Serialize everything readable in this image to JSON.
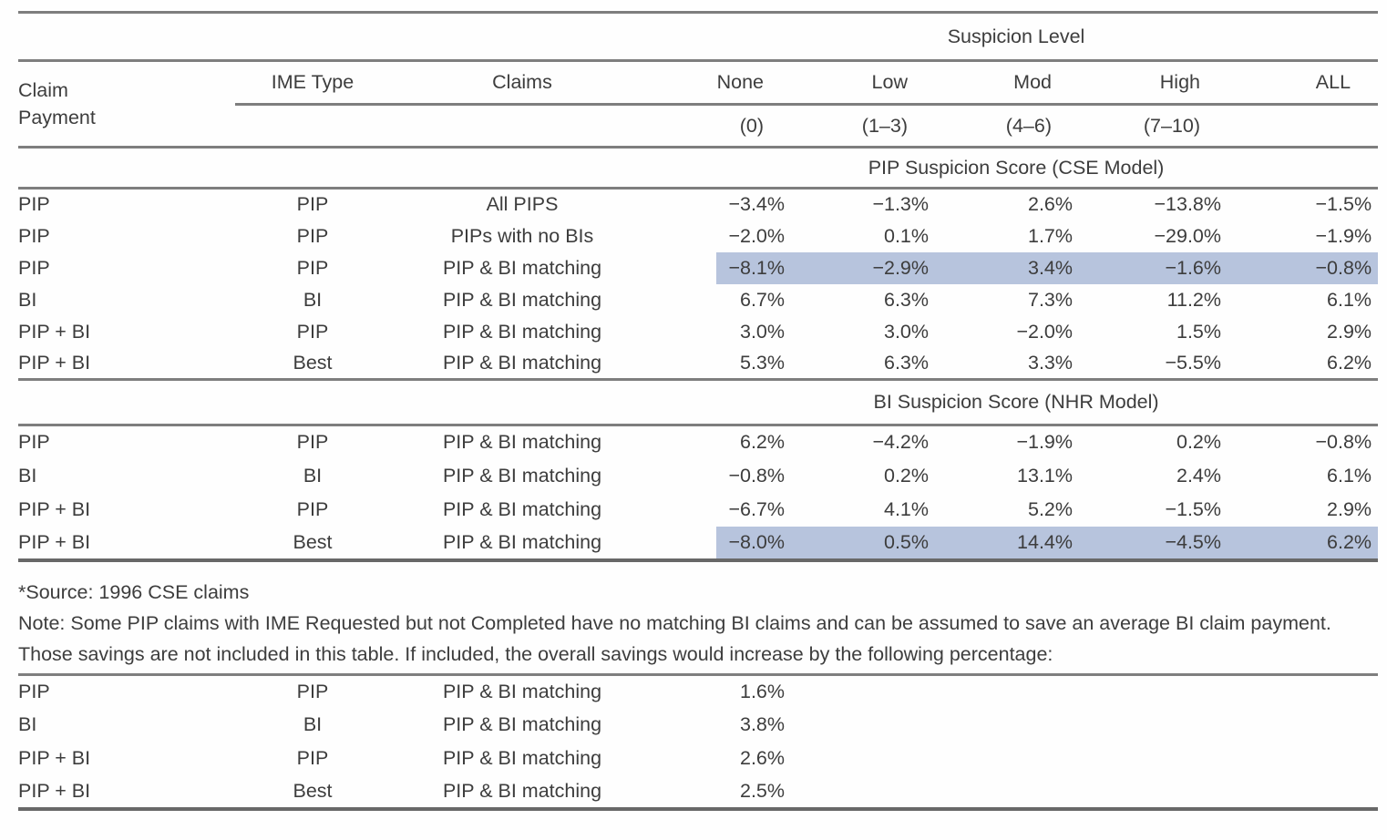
{
  "colors": {
    "highlight": "#b7c4dd",
    "rule": "#7e7e7e",
    "text": "#3d3d3d"
  },
  "table": {
    "suspicion_level": "Suspicion Level",
    "headers": {
      "claim_payment": "Claim Payment",
      "ime_type": "IME Type",
      "claims": "Claims",
      "levels": [
        "None",
        "Low",
        "Mod",
        "High",
        "ALL"
      ],
      "ranges": [
        "(0)",
        "(1–3)",
        "(4–6)",
        "(7–10)"
      ]
    },
    "sections": [
      {
        "banner": "PIP Suspicion Score (CSE Model)",
        "rows": [
          {
            "claim_payment": "PIP",
            "ime_type": "PIP",
            "claims": "All PIPS",
            "values": [
              "−3.4%",
              "−1.3%",
              "2.6%",
              "−13.8%",
              "−1.5%"
            ],
            "highlighted": false
          },
          {
            "claim_payment": "PIP",
            "ime_type": "PIP",
            "claims": "PIPs with no BIs",
            "values": [
              "−2.0%",
              "0.1%",
              "1.7%",
              "−29.0%",
              "−1.9%"
            ],
            "highlighted": false
          },
          {
            "claim_payment": "PIP",
            "ime_type": "PIP",
            "claims": "PIP & BI matching",
            "values": [
              "−8.1%",
              "−2.9%",
              "3.4%",
              "−1.6%",
              "−0.8%"
            ],
            "highlighted": true
          },
          {
            "claim_payment": "BI",
            "ime_type": "BI",
            "claims": "PIP & BI matching",
            "values": [
              "6.7%",
              "6.3%",
              "7.3%",
              "11.2%",
              "6.1%"
            ],
            "highlighted": false
          },
          {
            "claim_payment": "PIP + BI",
            "ime_type": "PIP",
            "claims": "PIP & BI matching",
            "values": [
              "3.0%",
              "3.0%",
              "−2.0%",
              "1.5%",
              "2.9%"
            ],
            "highlighted": false
          },
          {
            "claim_payment": "PIP + BI",
            "ime_type": "Best",
            "claims": "PIP & BI matching",
            "values": [
              "5.3%",
              "6.3%",
              "3.3%",
              "−5.5%",
              "6.2%"
            ],
            "highlighted": false
          }
        ]
      },
      {
        "banner": "BI Suspicion Score (NHR Model)",
        "rows": [
          {
            "claim_payment": "PIP",
            "ime_type": "PIP",
            "claims": "PIP & BI matching",
            "values": [
              "6.2%",
              "−4.2%",
              "−1.9%",
              "0.2%",
              "−0.8%"
            ],
            "highlighted": false
          },
          {
            "claim_payment": "BI",
            "ime_type": "BI",
            "claims": "PIP & BI matching",
            "values": [
              "−0.8%",
              "0.2%",
              "13.1%",
              "2.4%",
              "6.1%"
            ],
            "highlighted": false
          },
          {
            "claim_payment": "PIP + BI",
            "ime_type": "PIP",
            "claims": "PIP & BI matching",
            "values": [
              "−6.7%",
              "4.1%",
              "5.2%",
              "−1.5%",
              "2.9%"
            ],
            "highlighted": false
          },
          {
            "claim_payment": "PIP + BI",
            "ime_type": "Best",
            "claims": "PIP & BI matching",
            "values": [
              "−8.0%",
              "0.5%",
              "14.4%",
              "−4.5%",
              "6.2%"
            ],
            "highlighted": true
          }
        ]
      }
    ]
  },
  "notes": {
    "source": "*Source: 1996 CSE claims",
    "note": "Note: Some PIP claims with IME Requested but not Completed have no matching BI claims and can be assumed to save an average BI claim payment. Those savings are not included in this table. If included, the overall savings would increase by the following percentage:"
  },
  "appendix": {
    "rows": [
      {
        "claim_payment": "PIP",
        "ime_type": "PIP",
        "claims": "PIP & BI matching",
        "value": "1.6%"
      },
      {
        "claim_payment": "BI",
        "ime_type": "BI",
        "claims": "PIP & BI matching",
        "value": "3.8%"
      },
      {
        "claim_payment": "PIP + BI",
        "ime_type": "PIP",
        "claims": "PIP & BI matching",
        "value": "2.6%"
      },
      {
        "claim_payment": "PIP + BI",
        "ime_type": "Best",
        "claims": "PIP & BI matching",
        "value": "2.5%"
      }
    ]
  }
}
